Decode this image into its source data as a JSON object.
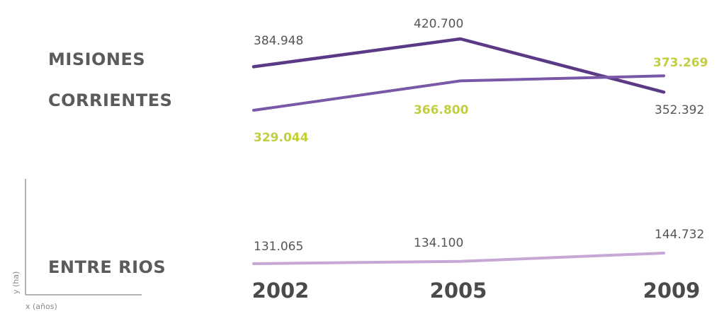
{
  "chart_data": {
    "type": "line",
    "x": [
      2002,
      2005,
      2009
    ],
    "tick_labels": [
      "2002",
      "2005",
      "2009"
    ],
    "series": [
      {
        "name": "MISIONES",
        "values": [
          384948,
          420700,
          352392
        ],
        "labels": [
          "384.948",
          "420.700",
          "352.392"
        ],
        "color": "#5a3a86"
      },
      {
        "name": "CORRIENTES",
        "values": [
          329044,
          366800,
          373269
        ],
        "labels": [
          "329.044",
          "366.800",
          "373.269"
        ],
        "color": "#7a58a8",
        "label_color": "#c2cf3a"
      },
      {
        "name": "ENTRE RIOS",
        "values": [
          131065,
          134100,
          144732
        ],
        "labels": [
          "131.065",
          "134.100",
          "144.732"
        ],
        "color": "#c6a7d6"
      }
    ],
    "legend": {
      "y_axis": "y (ha)",
      "x_axis": "x (años)"
    }
  }
}
